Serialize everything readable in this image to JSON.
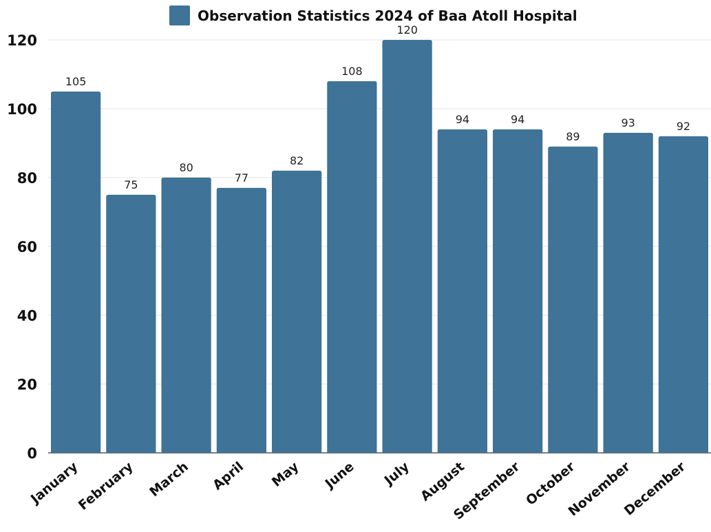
{
  "colors": {
    "bar": "#3f7398",
    "grid": "#e6e6e6",
    "axis": "#555555"
  },
  "chart_data": {
    "type": "bar",
    "title": "",
    "xlabel": "",
    "ylabel": "",
    "legend": {
      "position": "top-center",
      "entries": [
        "Observation Statistics 2024 of Baa Atoll Hospital"
      ]
    },
    "grid": true,
    "ylim": [
      0,
      120
    ],
    "yticks": [
      0,
      20,
      40,
      60,
      80,
      100,
      120
    ],
    "categories": [
      "January",
      "February",
      "March",
      "April",
      "May",
      "June",
      "July",
      "August",
      "September",
      "October",
      "November",
      "December"
    ],
    "series": [
      {
        "name": "Observation Statistics 2024 of Baa Atoll Hospital",
        "values": [
          105,
          75,
          80,
          77,
          82,
          108,
          120,
          94,
          94,
          89,
          93,
          92
        ]
      }
    ],
    "data_labels": true
  }
}
